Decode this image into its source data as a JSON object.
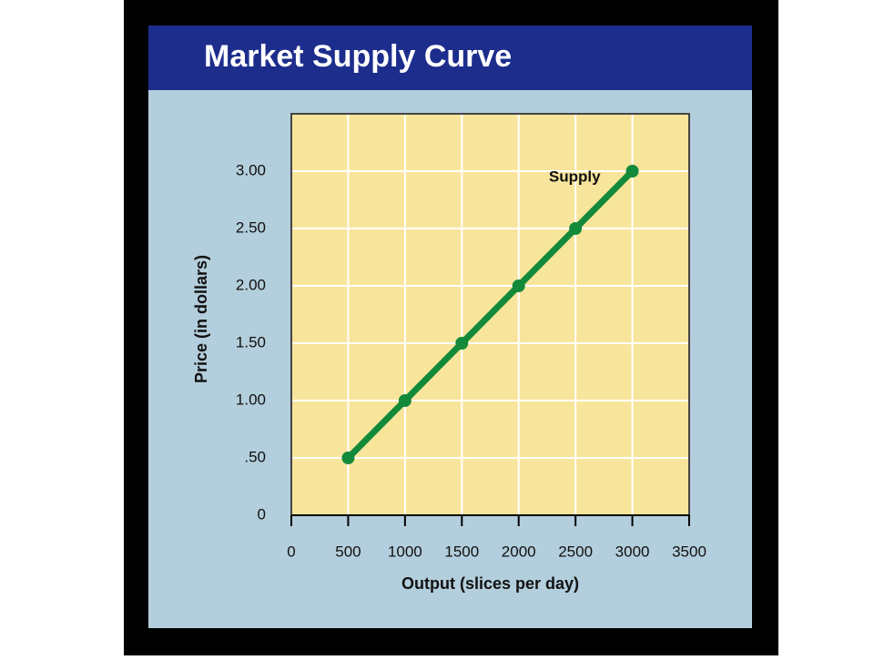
{
  "chart_data": {
    "type": "line",
    "title": "Market Supply Curve",
    "x": [
      500,
      1000,
      1500,
      2000,
      2500,
      3000
    ],
    "series": [
      {
        "name": "Supply",
        "color": "#138a3a",
        "values": [
          0.5,
          1.0,
          1.5,
          2.0,
          2.5,
          3.0
        ]
      }
    ],
    "xlabel": "Output (slices per day)",
    "ylabel": "Price (in dollars)",
    "xlim": [
      0,
      3500
    ],
    "xticks": [
      0,
      500,
      1000,
      1500,
      2000,
      2500,
      3000,
      3500
    ],
    "ylim": [
      0,
      3.5
    ],
    "yticks": [
      0,
      {
        "value": 0.5,
        "label": ".50"
      },
      {
        "value": 1,
        "label": "1.00"
      },
      {
        "value": 1.5,
        "label": "1.50"
      },
      {
        "value": 2,
        "label": "2.00"
      },
      {
        "value": 2.5,
        "label": "2.50"
      },
      {
        "value": 3,
        "label": "3.00"
      }
    ],
    "grid": true
  }
}
